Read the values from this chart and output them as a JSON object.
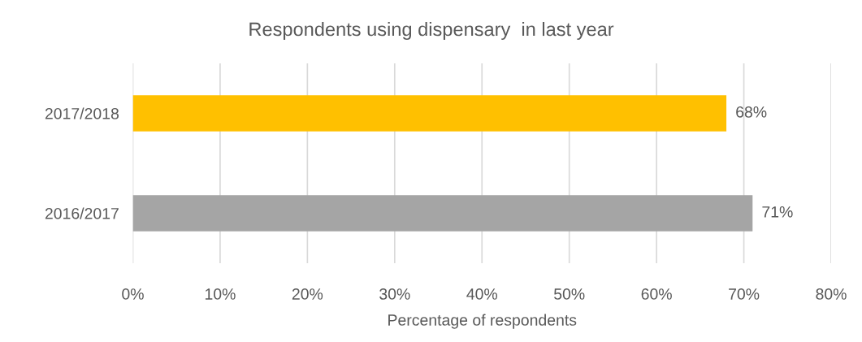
{
  "chart_data": {
    "type": "bar",
    "orientation": "horizontal",
    "title": "Respondents using dispensary  in last year",
    "xlabel": "Percentage of respondents",
    "categories": [
      "2017/2018",
      "2016/2017"
    ],
    "values": [
      68,
      71
    ],
    "colors": [
      "#ffc000",
      "#a5a5a5"
    ],
    "value_labels": [
      "68%",
      "71%"
    ],
    "xlim": [
      0,
      80
    ],
    "xticks": [
      {
        "value": 0,
        "label": "0%"
      },
      {
        "value": 10,
        "label": "10%"
      },
      {
        "value": 20,
        "label": "20%"
      },
      {
        "value": 30,
        "label": "30%"
      },
      {
        "value": 40,
        "label": "40%"
      },
      {
        "value": 50,
        "label": "50%"
      },
      {
        "value": 60,
        "label": "60%"
      },
      {
        "value": 70,
        "label": "70%"
      },
      {
        "value": 80,
        "label": "80%"
      }
    ],
    "grid": "x",
    "legend": false
  }
}
